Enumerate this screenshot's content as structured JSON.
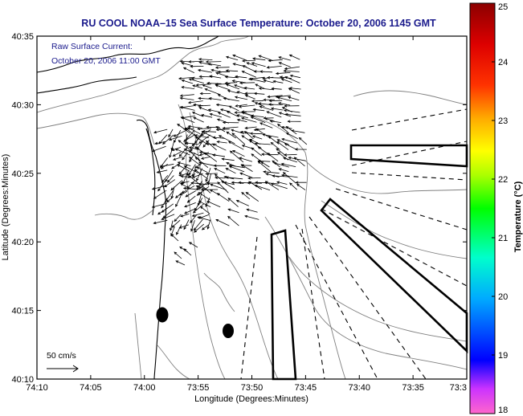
{
  "title": "RU COOL  NOAA–15  Sea Surface Temperature:  October 20, 2006 1145 GMT",
  "legend": {
    "line1": "Raw Surface Current:",
    "line2": "October 20, 2006 11:00 GMT"
  },
  "axes": {
    "xlabel": "Longitude (Degrees:Minutes)",
    "ylabel": "Latitude (Degrees:Minutes)",
    "xticks": [
      "74:10",
      "74:05",
      "74:00",
      "73:55",
      "73:50",
      "73:45",
      "73:40",
      "73:35",
      "73:3"
    ],
    "yticks": [
      "40:35",
      "40:30",
      "40:25",
      "40:20",
      "40:15",
      "40:10"
    ]
  },
  "scale": {
    "label": "50 cm/s"
  },
  "colorbar": {
    "label": "Temperature (°C)",
    "ticks": [
      "25",
      "24",
      "23",
      "22",
      "21",
      "20",
      "19",
      "18"
    ],
    "range": [
      18,
      25
    ],
    "colors": [
      "#ff33cc",
      "#0000ff",
      "#00ffff",
      "#00ff33",
      "#ffff00",
      "#ff6600",
      "#cc0000",
      "#8b0000"
    ]
  },
  "colors": {
    "title": "#1a1a8c",
    "land": "#ffffff",
    "contour": "#808080",
    "vectors": "#000000"
  },
  "icons": {
    "current_vectors": "arrow-field",
    "scale_arrow": "right-arrow",
    "buoys": "filled-ellipse"
  }
}
